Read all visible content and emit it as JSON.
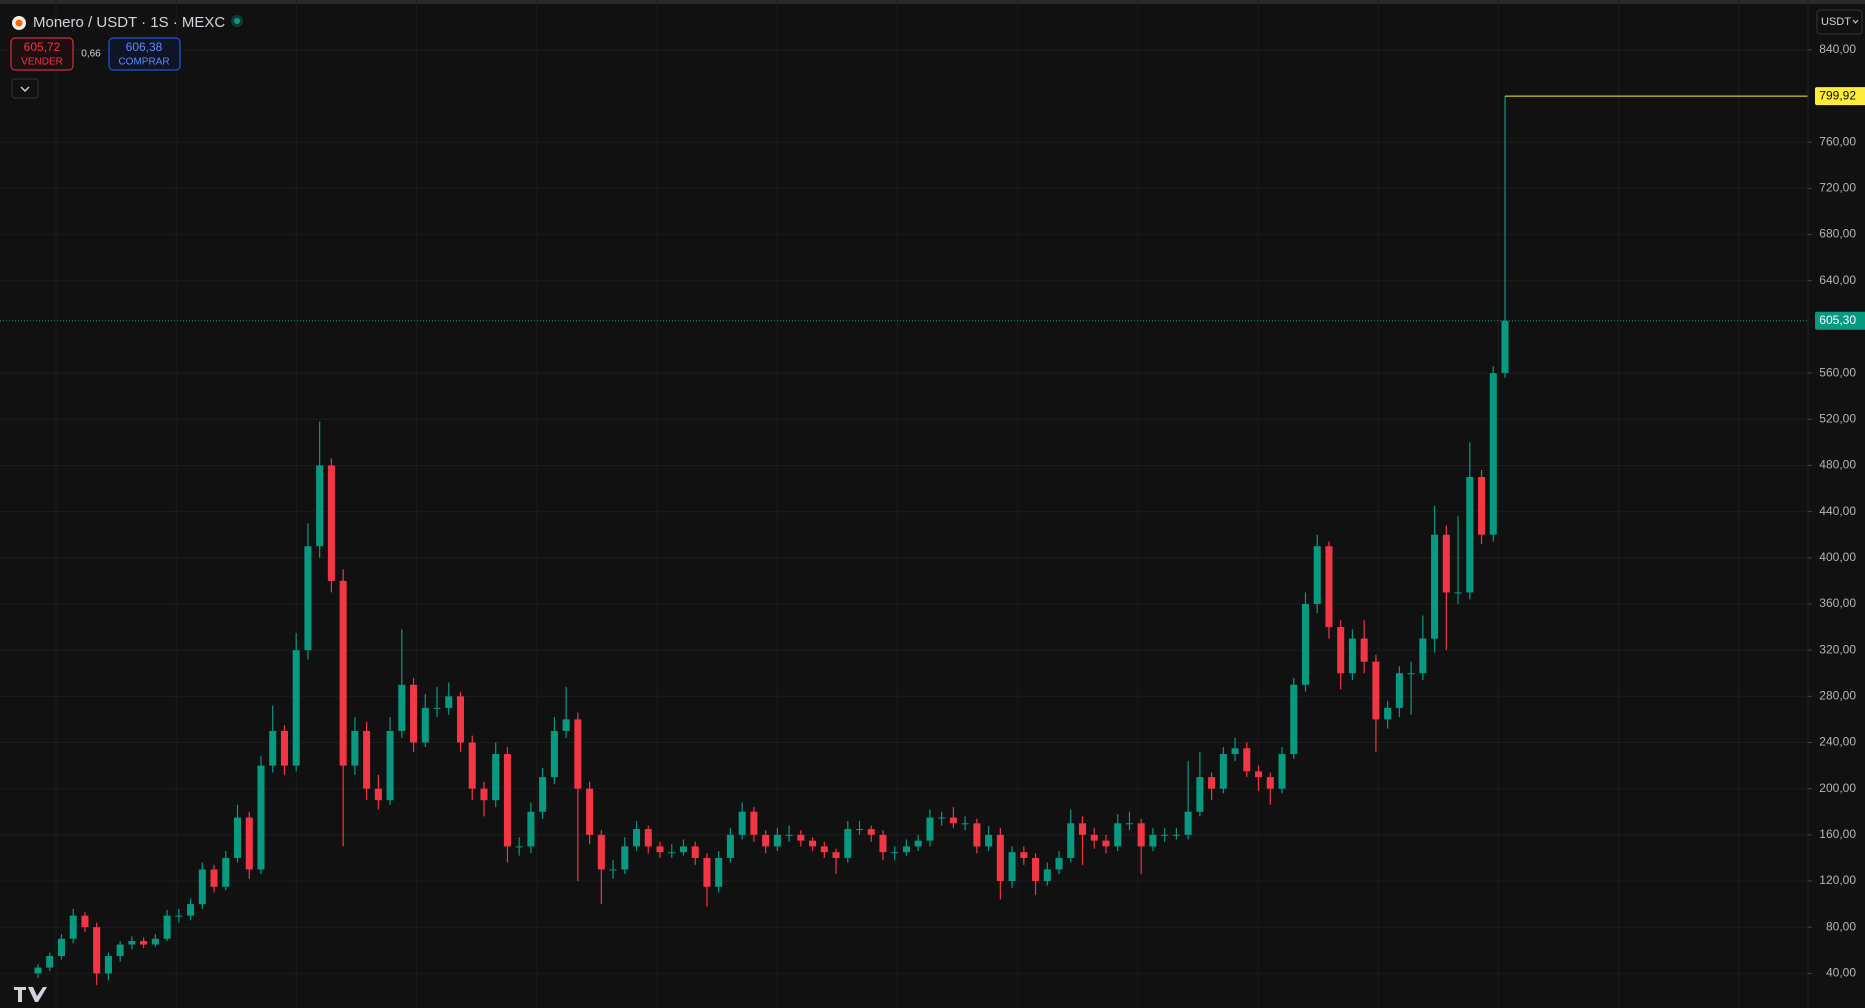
{
  "chart_data": {
    "type": "candlestick",
    "title": "Monero / USDT · 1S · MEXC",
    "sell_price": "605,72",
    "sell_label": "VENDER",
    "spread": "0,66",
    "buy_price": "606,38",
    "buy_label": "COMPRAR",
    "currency": "USDT",
    "up_color": "#089981",
    "down_color": "#f23645",
    "ylim": [
      10,
      878
    ],
    "yticks": [
      {
        "value": 40,
        "label": "40,00"
      },
      {
        "value": 80,
        "label": "80,00"
      },
      {
        "value": 120,
        "label": "120,00"
      },
      {
        "value": 160,
        "label": "160,00"
      },
      {
        "value": 200,
        "label": "200,00"
      },
      {
        "value": 240,
        "label": "240,00"
      },
      {
        "value": 280,
        "label": "280,00"
      },
      {
        "value": 320,
        "label": "320,00"
      },
      {
        "value": 360,
        "label": "360,00"
      },
      {
        "value": 400,
        "label": "400,00"
      },
      {
        "value": 440,
        "label": "440,00"
      },
      {
        "value": 480,
        "label": "480,00"
      },
      {
        "value": 520,
        "label": "520,00"
      },
      {
        "value": 560,
        "label": "560,00"
      },
      {
        "value": 640,
        "label": "640,00"
      },
      {
        "value": 680,
        "label": "680,00"
      },
      {
        "value": 720,
        "label": "720,00"
      },
      {
        "value": 760,
        "label": "760,00"
      },
      {
        "value": 840,
        "label": "840,00"
      }
    ],
    "grid": true,
    "price_lines": [
      {
        "value": 799.92,
        "label": "799,92",
        "color": "#ffeb3b",
        "style": "solid"
      },
      {
        "value": 605.3,
        "label": "605,30",
        "color": "#089981",
        "style": "dotted"
      }
    ],
    "candles": [
      [
        40,
        48,
        36,
        45
      ],
      [
        45,
        58,
        42,
        55
      ],
      [
        55,
        74,
        52,
        70
      ],
      [
        70,
        96,
        66,
        90
      ],
      [
        90,
        93,
        76,
        80
      ],
      [
        80,
        84,
        30,
        40
      ],
      [
        40,
        58,
        34,
        55
      ],
      [
        55,
        68,
        50,
        65
      ],
      [
        65,
        72,
        61,
        68
      ],
      [
        68,
        71,
        62,
        65
      ],
      [
        65,
        74,
        63,
        70
      ],
      [
        70,
        95,
        68,
        90
      ],
      [
        90,
        96,
        84,
        90
      ],
      [
        90,
        105,
        86,
        100
      ],
      [
        100,
        136,
        96,
        130
      ],
      [
        130,
        134,
        110,
        115
      ],
      [
        115,
        146,
        112,
        140
      ],
      [
        140,
        186,
        136,
        175
      ],
      [
        175,
        180,
        122,
        130
      ],
      [
        130,
        228,
        126,
        220
      ],
      [
        220,
        272,
        214,
        250
      ],
      [
        250,
        255,
        212,
        220
      ],
      [
        220,
        335,
        215,
        320
      ],
      [
        320,
        430,
        312,
        410
      ],
      [
        410,
        518,
        400,
        480
      ],
      [
        480,
        486,
        370,
        380
      ],
      [
        380,
        390,
        150,
        220
      ],
      [
        220,
        262,
        212,
        250
      ],
      [
        250,
        258,
        190,
        200
      ],
      [
        200,
        212,
        182,
        190
      ],
      [
        190,
        262,
        186,
        250
      ],
      [
        250,
        338,
        244,
        290
      ],
      [
        290,
        296,
        232,
        240
      ],
      [
        240,
        282,
        236,
        270
      ],
      [
        270,
        288,
        262,
        270
      ],
      [
        270,
        292,
        264,
        280
      ],
      [
        280,
        284,
        232,
        240
      ],
      [
        240,
        246,
        190,
        200
      ],
      [
        200,
        206,
        176,
        190
      ],
      [
        190,
        240,
        184,
        230
      ],
      [
        230,
        236,
        136,
        150
      ],
      [
        150,
        158,
        142,
        150
      ],
      [
        150,
        188,
        144,
        180
      ],
      [
        180,
        218,
        174,
        210
      ],
      [
        210,
        262,
        204,
        250
      ],
      [
        250,
        288,
        244,
        260
      ],
      [
        260,
        266,
        120,
        200
      ],
      [
        200,
        206,
        152,
        160
      ],
      [
        160,
        164,
        100,
        130
      ],
      [
        130,
        138,
        122,
        130
      ],
      [
        130,
        158,
        126,
        150
      ],
      [
        150,
        172,
        146,
        165
      ],
      [
        165,
        168,
        144,
        150
      ],
      [
        150,
        154,
        140,
        145
      ],
      [
        145,
        152,
        140,
        145
      ],
      [
        145,
        156,
        142,
        150
      ],
      [
        150,
        154,
        134,
        140
      ],
      [
        140,
        144,
        98,
        115
      ],
      [
        115,
        146,
        110,
        140
      ],
      [
        140,
        166,
        136,
        160
      ],
      [
        160,
        188,
        156,
        180
      ],
      [
        180,
        184,
        154,
        160
      ],
      [
        160,
        164,
        144,
        150
      ],
      [
        150,
        166,
        146,
        160
      ],
      [
        160,
        168,
        154,
        160
      ],
      [
        160,
        164,
        150,
        155
      ],
      [
        155,
        158,
        146,
        150
      ],
      [
        150,
        154,
        140,
        145
      ],
      [
        145,
        148,
        126,
        140
      ],
      [
        140,
        172,
        136,
        165
      ],
      [
        165,
        172,
        160,
        165
      ],
      [
        165,
        168,
        154,
        160
      ],
      [
        160,
        164,
        138,
        145
      ],
      [
        145,
        150,
        138,
        145
      ],
      [
        145,
        156,
        142,
        150
      ],
      [
        150,
        160,
        146,
        155
      ],
      [
        155,
        182,
        150,
        175
      ],
      [
        175,
        180,
        168,
        175
      ],
      [
        175,
        184,
        166,
        170
      ],
      [
        170,
        176,
        164,
        170
      ],
      [
        170,
        174,
        144,
        150
      ],
      [
        150,
        168,
        146,
        160
      ],
      [
        160,
        166,
        104,
        120
      ],
      [
        120,
        150,
        114,
        145
      ],
      [
        145,
        150,
        134,
        140
      ],
      [
        140,
        144,
        108,
        120
      ],
      [
        120,
        136,
        116,
        130
      ],
      [
        130,
        146,
        126,
        140
      ],
      [
        140,
        182,
        136,
        170
      ],
      [
        170,
        176,
        134,
        160
      ],
      [
        160,
        166,
        148,
        155
      ],
      [
        155,
        160,
        144,
        150
      ],
      [
        150,
        178,
        146,
        170
      ],
      [
        170,
        180,
        164,
        170
      ],
      [
        170,
        174,
        126,
        150
      ],
      [
        150,
        166,
        146,
        160
      ],
      [
        160,
        166,
        154,
        160
      ],
      [
        160,
        166,
        156,
        160
      ],
      [
        160,
        224,
        156,
        180
      ],
      [
        180,
        232,
        176,
        210
      ],
      [
        210,
        214,
        190,
        200
      ],
      [
        200,
        236,
        196,
        230
      ],
      [
        230,
        244,
        224,
        235
      ],
      [
        235,
        240,
        210,
        215
      ],
      [
        215,
        220,
        198,
        210
      ],
      [
        210,
        214,
        186,
        200
      ],
      [
        200,
        236,
        196,
        230
      ],
      [
        230,
        296,
        226,
        290
      ],
      [
        290,
        370,
        284,
        360
      ],
      [
        360,
        420,
        352,
        410
      ],
      [
        410,
        414,
        330,
        340
      ],
      [
        340,
        346,
        286,
        300
      ],
      [
        300,
        338,
        294,
        330
      ],
      [
        330,
        346,
        300,
        310
      ],
      [
        310,
        316,
        232,
        260
      ],
      [
        260,
        276,
        252,
        270
      ],
      [
        270,
        306,
        262,
        300
      ],
      [
        300,
        310,
        264,
        300
      ],
      [
        300,
        350,
        294,
        330
      ],
      [
        330,
        445,
        318,
        420
      ],
      [
        420,
        428,
        320,
        370
      ],
      [
        370,
        436,
        360,
        370
      ],
      [
        370,
        500,
        364,
        470
      ],
      [
        470,
        476,
        412,
        420
      ],
      [
        420,
        566,
        414,
        560
      ],
      [
        560,
        799.92,
        556,
        605.3
      ]
    ]
  }
}
